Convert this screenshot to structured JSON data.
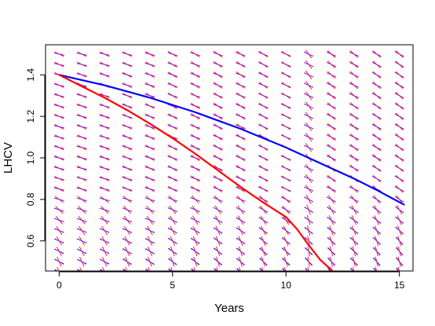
{
  "chart_data": {
    "type": "line",
    "title": "",
    "xlabel": "Years",
    "ylabel": "LHCV",
    "xlim": [
      -0.6,
      15.6
    ],
    "ylim": [
      0.455,
      1.545
    ],
    "x_ticks": [
      0,
      5,
      10,
      15
    ],
    "x_tick_labels": [
      "0",
      "5",
      "10",
      "15"
    ],
    "y_ticks": [
      0.6,
      0.8,
      1.0,
      1.2,
      1.4
    ],
    "y_tick_labels": [
      "0.6",
      "0.8",
      "1.0",
      "1.2",
      "1.4"
    ],
    "grid": false,
    "legend": "none",
    "series": [
      {
        "color": "#0000ff",
        "x": [
          0,
          1,
          2,
          3,
          4,
          5,
          6,
          7,
          8,
          9,
          10,
          11,
          12,
          13,
          14,
          15.2
        ],
        "y": [
          1.4,
          1.375,
          1.35,
          1.32,
          1.29,
          1.255,
          1.22,
          1.18,
          1.14,
          1.095,
          1.05,
          1.0,
          0.95,
          0.9,
          0.845,
          0.775
        ]
      },
      {
        "color": "#ff0000",
        "x": [
          0,
          1,
          2,
          3,
          4,
          5,
          6,
          7,
          8,
          9,
          10,
          10.5,
          11,
          11.5,
          12.1
        ],
        "y": [
          1.4,
          1.345,
          1.29,
          1.23,
          1.165,
          1.095,
          1.02,
          0.94,
          0.86,
          0.785,
          0.715,
          0.655,
          0.58,
          0.51,
          0.45
        ]
      }
    ],
    "direction_field": {
      "x_start": 0,
      "x_step": 1,
      "x_count": 16,
      "y_start": 0.45,
      "y_step": 0.05,
      "y_count": 22,
      "colors": [
        "#0000ff",
        "#ff0000",
        "#a020f0"
      ]
    }
  }
}
